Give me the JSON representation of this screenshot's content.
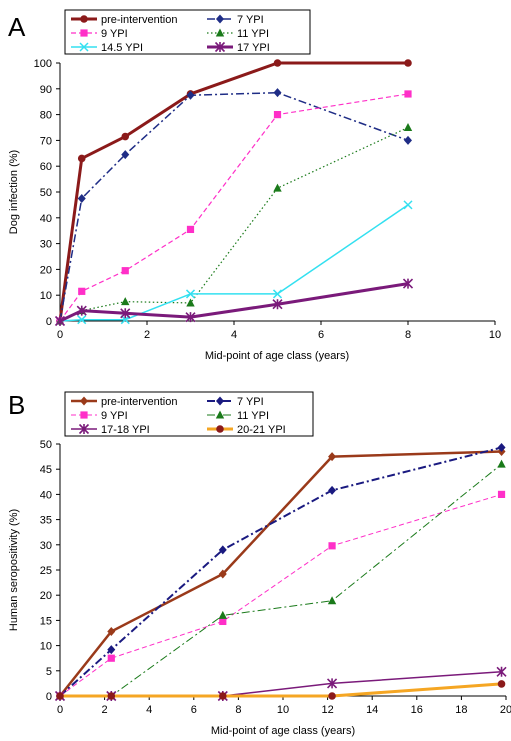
{
  "chart_data": [
    {
      "panel_label": "A",
      "type": "line",
      "xlabel": "Mid-point of age class (years)",
      "ylabel": "Dog infection (%)",
      "xlim": [
        0,
        10
      ],
      "ylim": [
        0,
        100
      ],
      "xticks": [
        0,
        2,
        4,
        6,
        8,
        10
      ],
      "yticks": [
        0,
        10,
        20,
        30,
        40,
        50,
        60,
        70,
        80,
        90,
        100
      ],
      "legend_position": "top",
      "series": [
        {
          "name": "pre-intervention",
          "color": "#8b1a1a",
          "marker": "circle",
          "style": "solid",
          "width": 3,
          "points": [
            [
              0,
              0
            ],
            [
              0.5,
              63
            ],
            [
              1.5,
              71.5
            ],
            [
              3,
              88
            ],
            [
              5,
              100
            ],
            [
              8,
              100
            ]
          ]
        },
        {
          "name": "7 YPI",
          "color": "#1f2d86",
          "marker": "diamond",
          "style": "dashdot",
          "width": 1.5,
          "points": [
            [
              0,
              0
            ],
            [
              0.5,
              47.5
            ],
            [
              1.5,
              64.5
            ],
            [
              3,
              87.5
            ],
            [
              5,
              88.5
            ],
            [
              8,
              70
            ]
          ]
        },
        {
          "name": "9 YPI",
          "color": "#ff2fc8",
          "marker": "square",
          "style": "dashed",
          "width": 1.2,
          "points": [
            [
              0,
              0
            ],
            [
              0.5,
              11.5
            ],
            [
              1.5,
              19.5
            ],
            [
              3,
              35.5
            ],
            [
              5,
              80
            ],
            [
              8,
              88
            ]
          ]
        },
        {
          "name": "11 YPI",
          "color": "#1a7a1a",
          "marker": "triangle",
          "style": "dotted",
          "width": 1.2,
          "points": [
            [
              0,
              0
            ],
            [
              0.5,
              4
            ],
            [
              1.5,
              7.5
            ],
            [
              3,
              7
            ],
            [
              5,
              51.5
            ],
            [
              8,
              75
            ]
          ]
        },
        {
          "name": "14.5 YPI",
          "color": "#33e0f0",
          "marker": "x",
          "style": "solid",
          "width": 1.5,
          "points": [
            [
              0,
              0
            ],
            [
              0.5,
              0.5
            ],
            [
              1.5,
              0.5
            ],
            [
              3,
              10.5
            ],
            [
              5,
              10.5
            ],
            [
              8,
              45
            ]
          ]
        },
        {
          "name": "17 YPI",
          "color": "#7a1a7a",
          "marker": "star",
          "style": "solid",
          "width": 3,
          "points": [
            [
              0,
              0
            ],
            [
              0.5,
              4
            ],
            [
              1.5,
              3
            ],
            [
              3,
              1.5
            ],
            [
              5,
              6.5
            ],
            [
              8,
              14.5
            ]
          ]
        }
      ]
    },
    {
      "panel_label": "B",
      "type": "line",
      "xlabel": "Mid-point of age class (years)",
      "ylabel": "Human seropositivity (%)",
      "xlim": [
        0,
        20
      ],
      "ylim": [
        0,
        50
      ],
      "xticks": [
        0,
        2,
        4,
        6,
        8,
        10,
        12,
        14,
        16,
        18,
        20
      ],
      "yticks": [
        0,
        5,
        10,
        15,
        20,
        25,
        30,
        35,
        40,
        45,
        50
      ],
      "legend_position": "top",
      "series": [
        {
          "name": "pre-intervention",
          "color": "#9a3a1a",
          "marker": "diamond",
          "style": "solid",
          "width": 2.5,
          "points": [
            [
              0,
              0
            ],
            [
              2.3,
              12.8
            ],
            [
              7.3,
              24.2
            ],
            [
              12.2,
              47.5
            ],
            [
              19.8,
              48.5
            ]
          ]
        },
        {
          "name": "7 YPI",
          "color": "#1a1a80",
          "marker": "diamond",
          "style": "dashdot",
          "width": 2,
          "points": [
            [
              0,
              0
            ],
            [
              2.3,
              9.2
            ],
            [
              7.3,
              29
            ],
            [
              12.2,
              40.8
            ],
            [
              19.8,
              49.3
            ]
          ]
        },
        {
          "name": "9  YPI",
          "color": "#ff2fc8",
          "marker": "square",
          "style": "dashed",
          "width": 1,
          "points": [
            [
              0,
              0
            ],
            [
              2.3,
              7.5
            ],
            [
              7.3,
              14.8
            ],
            [
              12.2,
              29.8
            ],
            [
              19.8,
              40
            ]
          ]
        },
        {
          "name": "11  YPI",
          "color": "#1a7a1a",
          "marker": "triangle",
          "style": "dashdot",
          "width": 1,
          "points": [
            [
              0,
              0
            ],
            [
              2.3,
              0
            ],
            [
              7.3,
              16
            ],
            [
              12.2,
              18.9
            ],
            [
              19.8,
              46
            ]
          ]
        },
        {
          "name": "17-18  YPI",
          "color": "#7a1a7a",
          "marker": "star",
          "style": "solid",
          "width": 1.5,
          "points": [
            [
              0,
              0
            ],
            [
              2.3,
              0
            ],
            [
              7.3,
              0
            ],
            [
              12.2,
              2.5
            ],
            [
              19.8,
              4.8
            ]
          ]
        },
        {
          "name": "20-21  YPI",
          "color": "#f5a623",
          "marker": "circle",
          "marker_color": "#8b1a1a",
          "style": "solid",
          "width": 3,
          "points": [
            [
              0,
              0
            ],
            [
              2.3,
              0
            ],
            [
              7.3,
              0
            ],
            [
              12.2,
              0
            ],
            [
              19.8,
              2.4
            ]
          ]
        }
      ]
    }
  ]
}
